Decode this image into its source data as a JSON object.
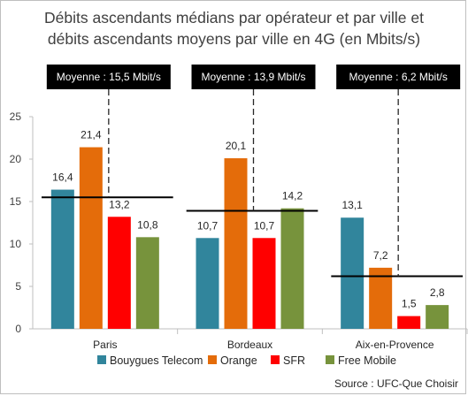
{
  "chart_data": {
    "type": "bar",
    "title_line1": "Débits ascendants médians par opérateur et par ville et",
    "title_line2": "débits ascendants moyens par ville en 4G (en Mbits/s)",
    "categories": [
      "Paris",
      "Bordeaux",
      "Aix-en-Provence"
    ],
    "series": [
      {
        "name": "Bouygues Telecom",
        "color": "#31859c",
        "values": [
          16.4,
          10.7,
          13.1
        ],
        "labels": [
          "16,4",
          "10,7",
          "13,1"
        ]
      },
      {
        "name": "Orange",
        "color": "#e46c0a",
        "values": [
          21.4,
          20.1,
          7.2
        ],
        "labels": [
          "21,4",
          "20,1",
          "7,2"
        ]
      },
      {
        "name": "SFR",
        "color": "#ff0000",
        "values": [
          13.2,
          10.7,
          1.5
        ],
        "labels": [
          "13,2",
          "10,7",
          "1,5"
        ]
      },
      {
        "name": "Free Mobile",
        "color": "#77933c",
        "values": [
          10.8,
          14.2,
          2.8
        ],
        "labels": [
          "10,8",
          "14,2",
          "2,8"
        ]
      }
    ],
    "averages": [
      {
        "value": 15.5,
        "label": "Moyenne : 15,5 Mbit/s"
      },
      {
        "value": 13.9,
        "label": "Moyenne : 13,9 Mbit/s"
      },
      {
        "value": 6.2,
        "label": "Moyenne : 6,2 Mbit/s"
      }
    ],
    "ylim": [
      0,
      25
    ],
    "yticks": [
      0,
      5,
      10,
      15,
      20,
      25
    ],
    "grid": false,
    "legend_position": "bottom",
    "source": "Source : UFC-Que Choisir"
  }
}
